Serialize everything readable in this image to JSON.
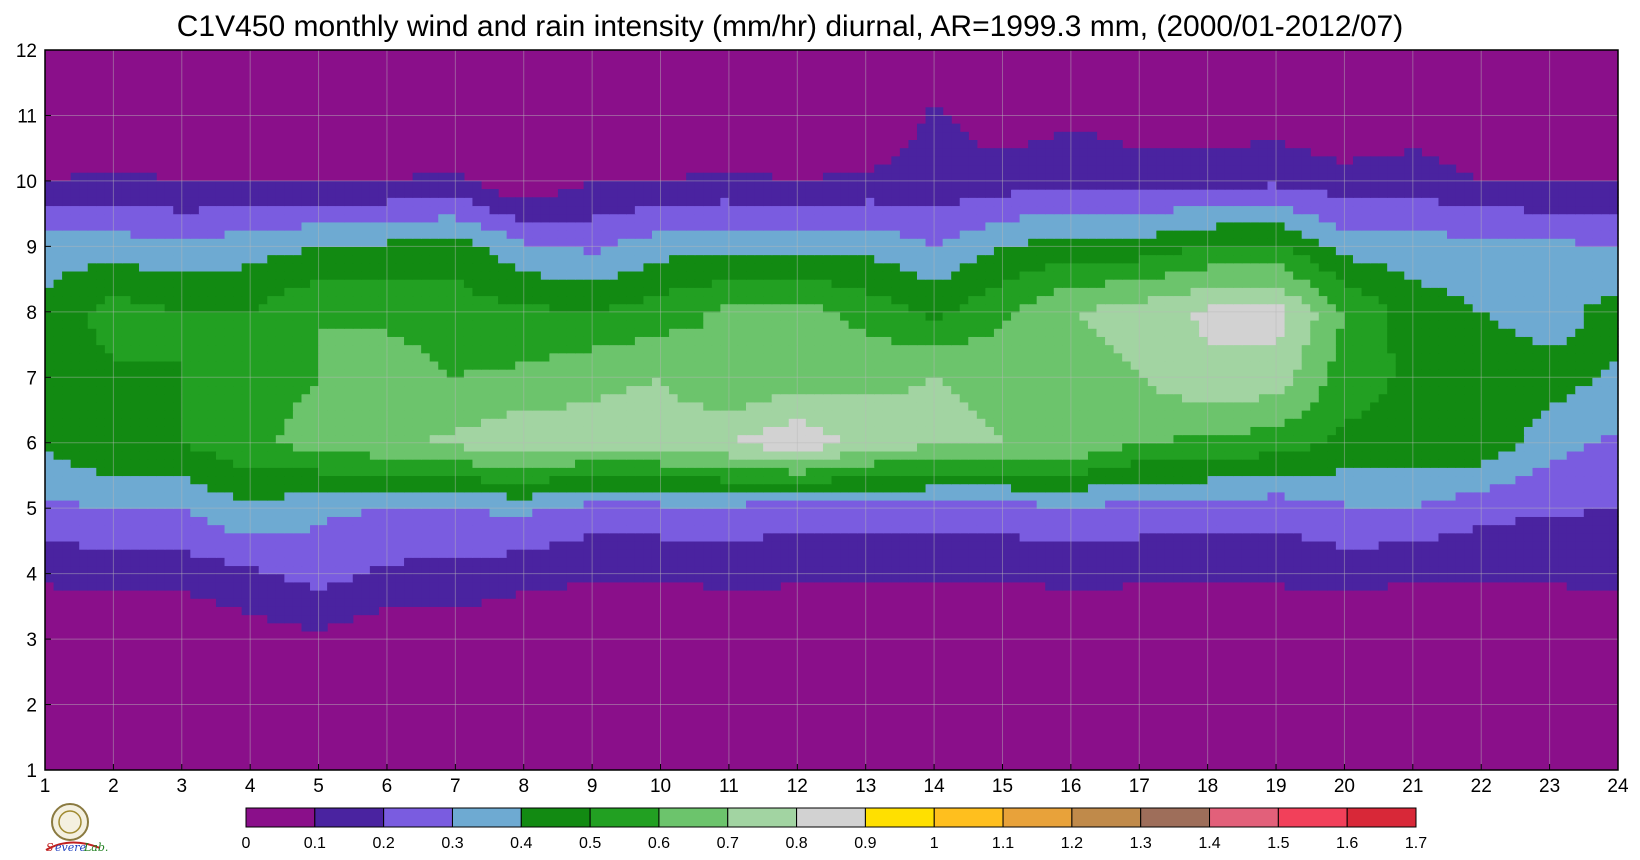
{
  "chart_data": {
    "type": "heatmap",
    "title": "C1V450 monthly wind and rain intensity (mm/hr) diurnal, AR=1999.3 mm, (2000/01-2012/07)",
    "xlabel": "",
    "ylabel": "",
    "x": [
      1,
      2,
      3,
      4,
      5,
      6,
      7,
      8,
      9,
      10,
      11,
      12,
      13,
      14,
      15,
      16,
      17,
      18,
      19,
      20,
      21,
      22,
      23,
      24
    ],
    "y": [
      1,
      2,
      3,
      4,
      5,
      6,
      7,
      8,
      9,
      10,
      11,
      12
    ],
    "xlim": [
      1,
      24
    ],
    "ylim": [
      1,
      12
    ],
    "grid": true,
    "levels": [
      0,
      0.1,
      0.2,
      0.3,
      0.4,
      0.5,
      0.6,
      0.7,
      0.8,
      0.9,
      1,
      1.1,
      1.2,
      1.3,
      1.4,
      1.5,
      1.6,
      1.7
    ],
    "level_labels": [
      "0",
      "0.1",
      "0.2",
      "0.3",
      "0.4",
      "0.5",
      "0.6",
      "0.7",
      "0.8",
      "0.9",
      "1",
      "1.1",
      "1.2",
      "1.3",
      "1.4",
      "1.5",
      "1.6",
      "1.7"
    ],
    "colors": [
      "#8a0f8a",
      "#4a23a0",
      "#7a5ce0",
      "#6eaad2",
      "#128a12",
      "#22a022",
      "#6cc46c",
      "#a2d4a2",
      "#d2d2d2",
      "#ffe000",
      "#ffbf1e",
      "#e8a23a",
      "#c08a4a",
      "#9e6e5a",
      "#e2607a",
      "#f2405a",
      "#d82838"
    ],
    "contour_line_color": "#f0a030",
    "z": [
      [
        0,
        0,
        0,
        0,
        0,
        0,
        0,
        0,
        0,
        0,
        0,
        0,
        0,
        0,
        0,
        0,
        0,
        0,
        0,
        0,
        0,
        0,
        0,
        0
      ],
      [
        0,
        0,
        0,
        0,
        0,
        0,
        0,
        0,
        0,
        0,
        0,
        0,
        0,
        0,
        0,
        0,
        0,
        0,
        0,
        0,
        0,
        0,
        0,
        0
      ],
      [
        0,
        0,
        0,
        0.05,
        0.08,
        0.02,
        0.04,
        0,
        0,
        0,
        0,
        0,
        0,
        0,
        0,
        0,
        0,
        0,
        0,
        0,
        0,
        0,
        0,
        0
      ],
      [
        0.12,
        0.14,
        0.14,
        0.18,
        0.24,
        0.18,
        0.17,
        0.14,
        0.11,
        0.11,
        0.13,
        0.12,
        0.12,
        0.11,
        0.11,
        0.13,
        0.12,
        0.12,
        0.12,
        0.14,
        0.11,
        0.11,
        0.12,
        0.13
      ],
      [
        0.28,
        0.3,
        0.3,
        0.39,
        0.32,
        0.3,
        0.3,
        0.32,
        0.26,
        0.27,
        0.27,
        0.25,
        0.26,
        0.25,
        0.26,
        0.29,
        0.26,
        0.26,
        0.24,
        0.29,
        0.3,
        0.23,
        0.21,
        0.2
      ],
      [
        0.42,
        0.5,
        0.5,
        0.58,
        0.64,
        0.68,
        0.72,
        0.78,
        0.74,
        0.75,
        0.8,
        0.88,
        0.76,
        0.72,
        0.7,
        0.69,
        0.6,
        0.58,
        0.55,
        0.48,
        0.46,
        0.48,
        0.34,
        0.28
      ],
      [
        0.45,
        0.48,
        0.5,
        0.55,
        0.6,
        0.65,
        0.6,
        0.62,
        0.68,
        0.7,
        0.6,
        0.65,
        0.68,
        0.7,
        0.68,
        0.62,
        0.7,
        0.78,
        0.76,
        0.55,
        0.48,
        0.45,
        0.45,
        0.38
      ],
      [
        0.42,
        0.55,
        0.5,
        0.5,
        0.6,
        0.58,
        0.55,
        0.52,
        0.5,
        0.55,
        0.62,
        0.65,
        0.56,
        0.48,
        0.58,
        0.7,
        0.75,
        0.82,
        0.84,
        0.6,
        0.45,
        0.4,
        0.35,
        0.45
      ],
      [
        0.36,
        0.35,
        0.32,
        0.36,
        0.4,
        0.42,
        0.45,
        0.32,
        0.28,
        0.36,
        0.38,
        0.35,
        0.38,
        0.3,
        0.4,
        0.44,
        0.44,
        0.5,
        0.52,
        0.36,
        0.34,
        0.34,
        0.32,
        0.3
      ],
      [
        0.1,
        0.12,
        0.1,
        0.1,
        0.1,
        0.1,
        0.12,
        0,
        0.1,
        0.1,
        0.12,
        0.1,
        0.12,
        0.13,
        0.15,
        0.18,
        0.16,
        0.17,
        0.18,
        0.14,
        0.16,
        0.1,
        0.1,
        0.1
      ],
      [
        0,
        0,
        0,
        0,
        0,
        0,
        0,
        0,
        0,
        0,
        0,
        0,
        0,
        0.12,
        0.04,
        0.08,
        0.04,
        0.02,
        0.05,
        0,
        0.03,
        0,
        0,
        0
      ],
      [
        0,
        0,
        0,
        0,
        0,
        0,
        0,
        0,
        0,
        0,
        0,
        0,
        0,
        0,
        0,
        0,
        0,
        0,
        0,
        0,
        0,
        0,
        0,
        0
      ]
    ]
  }
}
